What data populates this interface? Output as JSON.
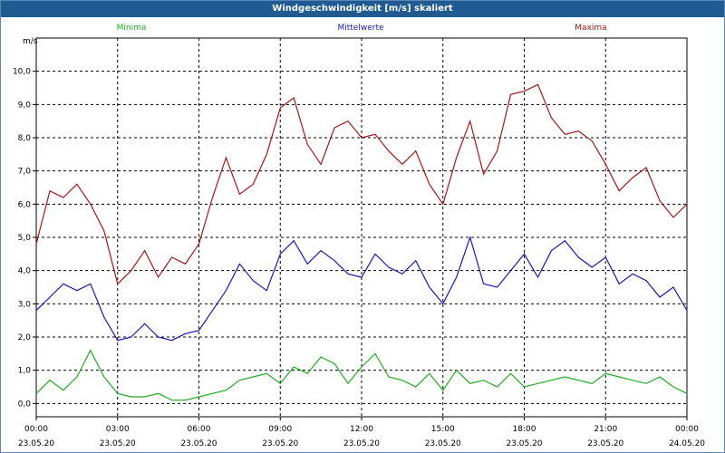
{
  "window": {
    "title": "Windgeschwindigkeit [m/s] skaliert"
  },
  "chart_data": {
    "type": "line",
    "title": "Windgeschwindigkeit [m/s] skaliert",
    "xlabel": "",
    "ylabel": "m/s",
    "xlim": [
      0,
      24
    ],
    "ylim": [
      -0.4,
      11.0
    ],
    "grid": true,
    "legend_position": "top",
    "y_ticks": [
      {
        "value": 0,
        "label": "0,0"
      },
      {
        "value": 1,
        "label": "1,0"
      },
      {
        "value": 2,
        "label": "2,0"
      },
      {
        "value": 3,
        "label": "3,0"
      },
      {
        "value": 4,
        "label": "4,0"
      },
      {
        "value": 5,
        "label": "5,0"
      },
      {
        "value": 6,
        "label": "6,0"
      },
      {
        "value": 7,
        "label": "7,0"
      },
      {
        "value": 8,
        "label": "8,0"
      },
      {
        "value": 9,
        "label": "9,0"
      },
      {
        "value": 10,
        "label": "10,0"
      }
    ],
    "x_ticks": [
      {
        "value": 0,
        "time": "00:00",
        "date": "23.05.20"
      },
      {
        "value": 3,
        "time": "03:00",
        "date": "23.05.20"
      },
      {
        "value": 6,
        "time": "06:00",
        "date": "23.05.20"
      },
      {
        "value": 9,
        "time": "09:00",
        "date": "23.05.20"
      },
      {
        "value": 12,
        "time": "12:00",
        "date": "23.05.20"
      },
      {
        "value": 15,
        "time": "15:00",
        "date": "23.05.20"
      },
      {
        "value": 18,
        "time": "18:00",
        "date": "23.05.20"
      },
      {
        "value": 21,
        "time": "21:00",
        "date": "23.05.20"
      },
      {
        "value": 24,
        "time": "00:00",
        "date": "24.05.20"
      }
    ],
    "series": [
      {
        "name": "Minima",
        "color": "#22aa22",
        "x": [
          0,
          0.5,
          1,
          1.5,
          2,
          2.5,
          3,
          3.5,
          4,
          4.5,
          5,
          5.5,
          6,
          6.5,
          7,
          7.5,
          8,
          8.5,
          9,
          9.5,
          10,
          10.5,
          11,
          11.5,
          12,
          12.5,
          13,
          13.5,
          14,
          14.5,
          15,
          15.5,
          16,
          16.5,
          17,
          17.5,
          18,
          18.5,
          19,
          19.5,
          20,
          20.5,
          21,
          21.5,
          22,
          22.5,
          23,
          23.5,
          24
        ],
        "values": [
          0.3,
          0.7,
          0.4,
          0.8,
          1.6,
          0.8,
          0.3,
          0.2,
          0.2,
          0.3,
          0.1,
          0.1,
          0.2,
          0.3,
          0.4,
          0.7,
          0.8,
          0.9,
          0.6,
          1.1,
          0.9,
          1.4,
          1.2,
          0.6,
          1.1,
          1.5,
          0.8,
          0.7,
          0.5,
          0.9,
          0.4,
          1.0,
          0.6,
          0.7,
          0.5,
          0.9,
          0.5,
          0.6,
          0.7,
          0.8,
          0.7,
          0.6,
          0.9,
          0.8,
          0.7,
          0.6,
          0.8,
          0.5,
          0.3
        ]
      },
      {
        "name": "Mittelwerte",
        "color": "#1818b0",
        "x": [
          0,
          0.5,
          1,
          1.5,
          2,
          2.5,
          3,
          3.5,
          4,
          4.5,
          5,
          5.5,
          6,
          6.5,
          7,
          7.5,
          8,
          8.5,
          9,
          9.5,
          10,
          10.5,
          11,
          11.5,
          12,
          12.5,
          13,
          13.5,
          14,
          14.5,
          15,
          15.5,
          16,
          16.5,
          17,
          17.5,
          18,
          18.5,
          19,
          19.5,
          20,
          20.5,
          21,
          21.5,
          22,
          22.5,
          23,
          23.5,
          24
        ],
        "values": [
          2.8,
          3.2,
          3.6,
          3.4,
          3.6,
          2.6,
          1.9,
          2.0,
          2.4,
          2.0,
          1.9,
          2.1,
          2.2,
          2.8,
          3.4,
          4.2,
          3.7,
          3.4,
          4.5,
          4.9,
          4.2,
          4.6,
          4.3,
          3.9,
          3.8,
          4.5,
          4.1,
          3.9,
          4.3,
          3.5,
          3.0,
          3.8,
          5.0,
          3.6,
          3.5,
          4.0,
          4.5,
          3.8,
          4.6,
          4.9,
          4.4,
          4.1,
          4.4,
          3.6,
          3.9,
          3.7,
          3.2,
          3.5,
          2.8
        ]
      },
      {
        "name": "Maxima",
        "color": "#a01818",
        "x": [
          0,
          0.5,
          1,
          1.5,
          2,
          2.5,
          3,
          3.5,
          4,
          4.5,
          5,
          5.5,
          6,
          6.5,
          7,
          7.5,
          8,
          8.5,
          9,
          9.5,
          10,
          10.5,
          11,
          11.5,
          12,
          12.5,
          13,
          13.5,
          14,
          14.5,
          15,
          15.5,
          16,
          16.5,
          17,
          17.5,
          18,
          18.5,
          19,
          19.5,
          20,
          20.5,
          21,
          21.5,
          22,
          22.5,
          23,
          23.5,
          24
        ],
        "values": [
          4.8,
          6.4,
          6.2,
          6.6,
          6.0,
          5.2,
          3.6,
          4.0,
          4.6,
          3.8,
          4.4,
          4.2,
          4.8,
          6.2,
          7.4,
          6.3,
          6.6,
          7.5,
          8.9,
          9.2,
          7.8,
          7.2,
          8.3,
          8.5,
          8.0,
          8.1,
          7.6,
          7.2,
          7.6,
          6.6,
          6.0,
          7.4,
          8.5,
          6.9,
          7.6,
          9.3,
          9.4,
          9.6,
          8.6,
          8.1,
          8.2,
          7.9,
          7.2,
          6.4,
          6.8,
          7.1,
          6.1,
          5.6,
          6.0
        ]
      }
    ]
  }
}
